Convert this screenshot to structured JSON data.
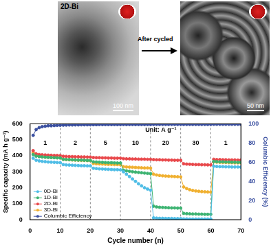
{
  "panels": {
    "left": {
      "label": "2D-Bi",
      "scale_bar": "100 nm"
    },
    "arrow_label": "After cycled",
    "right": {
      "scale_bar": "50 nm"
    }
  },
  "chart_data": {
    "type": "line",
    "x_label": "Cycle number (n)",
    "y_label": "Specific capacity (mA h g⁻¹)",
    "y2_label": "Columbic Efficiency (%)",
    "annotations": [
      "1",
      "2",
      "5",
      "10",
      "20",
      "30",
      "1"
    ],
    "unit_note": "Unit: A g⁻¹",
    "segment_boundaries": [
      10,
      20,
      30,
      40,
      50,
      60
    ],
    "xlim": [
      0,
      70
    ],
    "xticks": [
      0,
      10,
      20,
      30,
      40,
      50,
      60,
      70
    ],
    "ylim": [
      0,
      600
    ],
    "yticks": [
      0,
      100,
      200,
      300,
      400,
      500,
      600
    ],
    "y2lim": [
      0,
      100
    ],
    "y2ticks": [
      0,
      20,
      40,
      60,
      80,
      100
    ],
    "grid": false,
    "legend": "lower left",
    "x": [
      1,
      2,
      3,
      4,
      5,
      6,
      7,
      8,
      9,
      10,
      11,
      12,
      13,
      14,
      15,
      16,
      17,
      18,
      19,
      20,
      21,
      22,
      23,
      24,
      25,
      26,
      27,
      28,
      29,
      30,
      31,
      32,
      33,
      34,
      35,
      36,
      37,
      38,
      39,
      40,
      41,
      42,
      43,
      44,
      45,
      46,
      47,
      48,
      49,
      50,
      51,
      52,
      53,
      54,
      55,
      56,
      57,
      58,
      59,
      60,
      61,
      62,
      63,
      64,
      65,
      66,
      67,
      68,
      69,
      70
    ],
    "series": [
      {
        "name": "0D-Bi",
        "color": "#4fbde6",
        "marker": "circle",
        "values": [
          385,
          372,
          368,
          365,
          363,
          361,
          360,
          359,
          358,
          357,
          345,
          343,
          342,
          341,
          340,
          339,
          338,
          338,
          337,
          337,
          322,
          320,
          318,
          317,
          316,
          315,
          314,
          313,
          313,
          312,
          300,
          285,
          270,
          255,
          240,
          225,
          212,
          200,
          192,
          185,
          12,
          10,
          9,
          9,
          8,
          8,
          8,
          7,
          7,
          7,
          5,
          5,
          4,
          4,
          4,
          4,
          4,
          4,
          4,
          4,
          335,
          333,
          332,
          332,
          331,
          331,
          330,
          330,
          330,
          329
        ]
      },
      {
        "name": "1D-Bi",
        "color": "#3cb371",
        "marker": "circle",
        "values": [
          408,
          398,
          395,
          393,
          391,
          390,
          389,
          388,
          387,
          386,
          378,
          377,
          376,
          375,
          374,
          373,
          373,
          372,
          371,
          371,
          362,
          361,
          360,
          359,
          358,
          357,
          357,
          356,
          355,
          355,
          310,
          306,
          303,
          300,
          298,
          296,
          294,
          292,
          290,
          288,
          85,
          80,
          78,
          77,
          76,
          75,
          74,
          74,
          73,
          73,
          40,
          38,
          37,
          36,
          36,
          35,
          35,
          34,
          34,
          34,
          365,
          363,
          362,
          362,
          361,
          361,
          360,
          360,
          359,
          359
        ]
      },
      {
        "name": "2D-Bi",
        "color": "#e8474a",
        "marker": "circle",
        "values": [
          432,
          412,
          408,
          406,
          405,
          404,
          403,
          402,
          402,
          401,
          397,
          396,
          395,
          395,
          394,
          394,
          393,
          393,
          392,
          392,
          389,
          388,
          388,
          387,
          387,
          386,
          386,
          385,
          385,
          385,
          382,
          381,
          381,
          380,
          380,
          379,
          379,
          379,
          378,
          378,
          376,
          375,
          375,
          374,
          374,
          373,
          373,
          372,
          372,
          372,
          350,
          348,
          347,
          346,
          345,
          345,
          344,
          344,
          343,
          343,
          378,
          376,
          376,
          375,
          375,
          374,
          374,
          374,
          373,
          373
        ]
      },
      {
        "name": "3D-Bi",
        "color": "#f0b030",
        "marker": "circle",
        "values": [
          418,
          400,
          396,
          394,
          392,
          391,
          390,
          389,
          388,
          388,
          378,
          376,
          375,
          374,
          373,
          372,
          371,
          371,
          370,
          370,
          352,
          350,
          349,
          348,
          347,
          346,
          346,
          345,
          345,
          344,
          332,
          330,
          329,
          328,
          327,
          326,
          325,
          324,
          324,
          323,
          285,
          280,
          277,
          275,
          273,
          272,
          271,
          270,
          269,
          268,
          205,
          195,
          188,
          183,
          180,
          178,
          176,
          175,
          174,
          173,
          362,
          360,
          359,
          358,
          358,
          357,
          357,
          356,
          356,
          356
        ]
      },
      {
        "name": "Columbic Efficiency",
        "color": "#3a4fa0",
        "marker": "circle",
        "axis": "y2",
        "values": [
          88,
          94,
          96,
          97,
          97.5,
          98,
          98,
          98.2,
          98.4,
          98.5,
          98.6,
          98.7,
          98.8,
          98.8,
          98.9,
          98.9,
          99,
          99,
          99,
          99,
          99.1,
          99.1,
          99.2,
          99.2,
          99.2,
          99.2,
          99.2,
          99.2,
          99.2,
          99.2,
          99.3,
          99.3,
          99.3,
          99.3,
          99.3,
          99.3,
          99.3,
          99.3,
          99.3,
          99.3,
          99.4,
          99.4,
          99.4,
          99.4,
          99.4,
          99.4,
          99.4,
          99.4,
          99.4,
          99.4,
          99.4,
          99.4,
          99.4,
          99.4,
          99.4,
          99.4,
          99.4,
          99.4,
          99.4,
          99.4,
          99.5,
          99.5,
          99.5,
          99.5,
          99.5,
          99.5,
          99.5,
          99.5,
          99.5,
          99.5
        ]
      }
    ]
  }
}
